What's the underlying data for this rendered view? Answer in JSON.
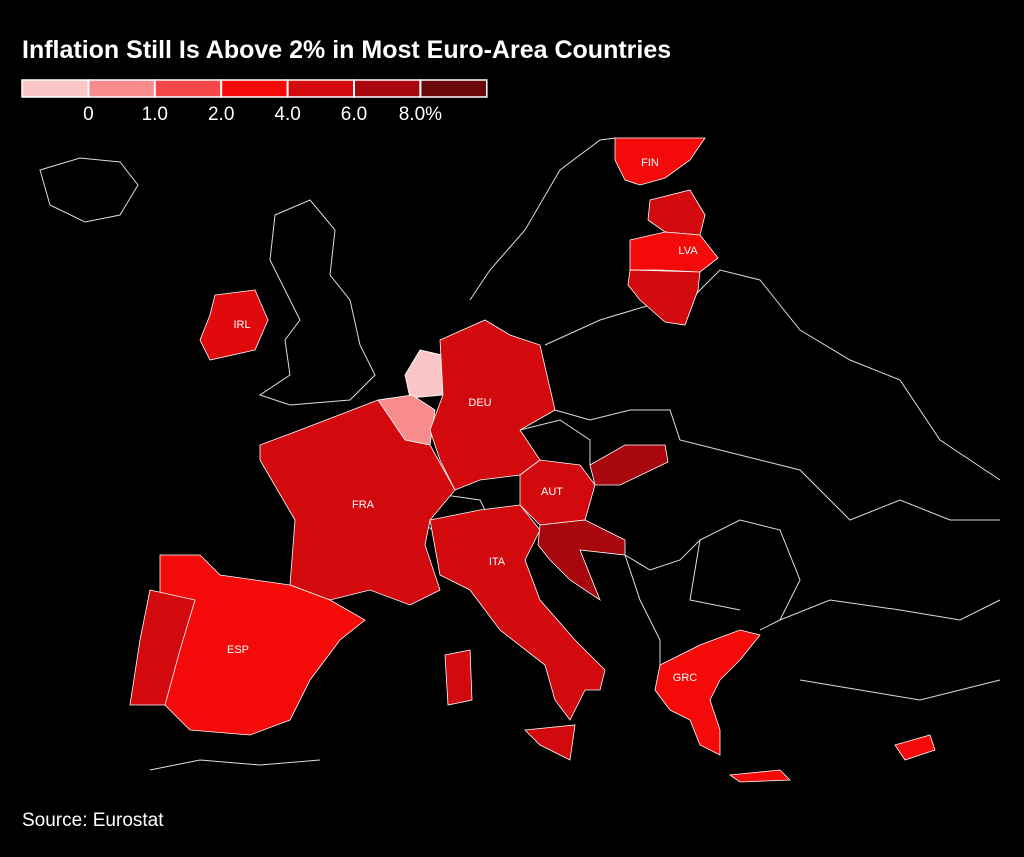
{
  "title": "Inflation Still Is Above 2% in Most Euro-Area Countries",
  "legend": {
    "colors": [
      "#fbc6c7",
      "#f88b8c",
      "#f4484a",
      "#f50a0a",
      "#d20a0d",
      "#a8070e",
      "#6a070b"
    ],
    "ticks": [
      0,
      {
        "value": 1,
        "label": "1.0"
      },
      {
        "value": 2,
        "label": "2.0"
      },
      {
        "value": 4,
        "label": "4.0"
      },
      {
        "value": 6,
        "label": "6.0"
      },
      {
        "value": 8,
        "label": "8.0%"
      }
    ]
  },
  "regions": [
    {
      "label": "FIN",
      "color": "#f50a0a"
    },
    {
      "color": "#d20a0d"
    },
    {
      "label": "LVA",
      "color": "#f50a0a"
    },
    {
      "color": "#d20a0d"
    },
    {
      "label": "IRL",
      "color": "#e00a0c"
    },
    {
      "color": "#fbc6c7"
    },
    {
      "color": "#f88b8c"
    },
    {
      "label": "DEU",
      "color": "#d20a0d"
    },
    {
      "label": "FRA",
      "color": "#d20a0d"
    },
    {
      "label": "ESP",
      "color": "#f50a0a"
    },
    {
      "color": "#d20a0d"
    },
    {
      "label": "ITA",
      "color": "#d20a0d"
    },
    {
      "label": "AUT",
      "color": "#d20a0d"
    },
    {
      "color": "#a8070e"
    },
    {
      "color": "#a8070e"
    },
    {
      "label": "GRC",
      "color": "#f50a0a"
    },
    {
      "color": "#f50a0a"
    }
  ],
  "source": "Source: Eurostat"
}
